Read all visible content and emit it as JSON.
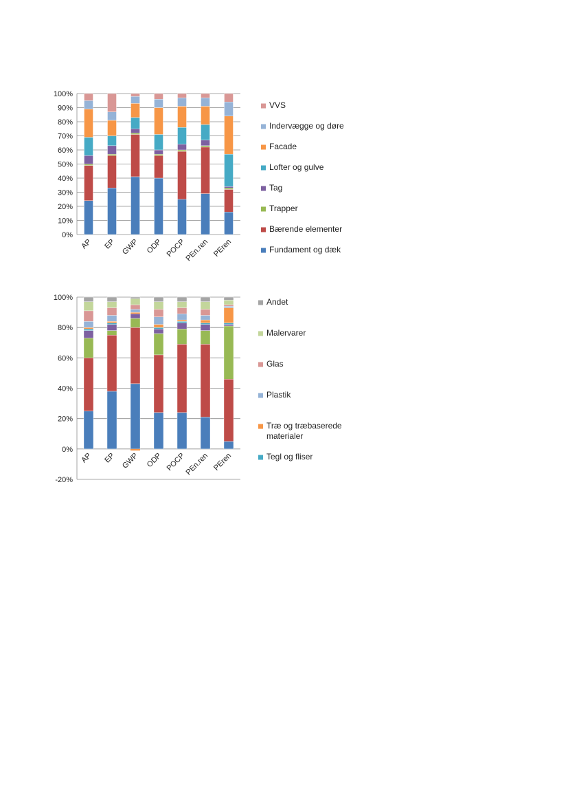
{
  "chart_data": [
    {
      "type": "bar",
      "stacked": true,
      "categories": [
        "AP",
        "EP",
        "GWP",
        "ODP",
        "POCP",
        "PEn.ren",
        "PEren"
      ],
      "ylim": [
        0,
        100
      ],
      "yticks": [
        0,
        10,
        20,
        30,
        40,
        50,
        60,
        70,
        80,
        90,
        100
      ],
      "ytick_labels": [
        "0%",
        "10%",
        "20%",
        "30%",
        "40%",
        "50%",
        "60%",
        "70%",
        "80%",
        "90%",
        "100%"
      ],
      "legend_position": "right",
      "legend_order": [
        "VVS",
        "Indervægge og døre",
        "Facade",
        "Lofter og gulve",
        "Tag",
        "Trapper",
        "Bærende elementer",
        "Fundament og dæk"
      ],
      "series": [
        {
          "name": "Fundament og dæk",
          "color": "#4a7ebb",
          "values": [
            24,
            33,
            41,
            40,
            25,
            29,
            16
          ]
        },
        {
          "name": "Bærende elementer",
          "color": "#be4b48",
          "values": [
            25,
            23,
            30,
            16,
            34,
            33,
            16
          ]
        },
        {
          "name": "Trapper",
          "color": "#98b954",
          "values": [
            1,
            1,
            1,
            1,
            1,
            1,
            1
          ]
        },
        {
          "name": "Tag",
          "color": "#7d60a0",
          "values": [
            6,
            6,
            3,
            3,
            4,
            4,
            1
          ]
        },
        {
          "name": "Lofter og gulve",
          "color": "#46aac5",
          "values": [
            13,
            7,
            8,
            11,
            12,
            11,
            23
          ]
        },
        {
          "name": "Facade",
          "color": "#f79646",
          "values": [
            20,
            11,
            10,
            19,
            15,
            13,
            27
          ]
        },
        {
          "name": "Indervægge og døre",
          "color": "#95b3d7",
          "values": [
            6,
            6,
            5,
            6,
            6,
            6,
            10
          ]
        },
        {
          "name": "VVS",
          "color": "#d99795",
          "values": [
            5,
            13,
            2,
            4,
            3,
            3,
            6
          ]
        }
      ]
    },
    {
      "type": "bar",
      "stacked": true,
      "categories": [
        "AP",
        "EP",
        "GWP",
        "ODP",
        "POCP",
        "PEn.ren",
        "PEren"
      ],
      "ylim": [
        -20,
        100
      ],
      "yticks": [
        -20,
        0,
        20,
        40,
        60,
        80,
        100
      ],
      "ytick_labels": [
        "-20%",
        "0%",
        "20%",
        "40%",
        "60%",
        "80%",
        "100%"
      ],
      "legend_position": "right",
      "legend_order": [
        "Andet",
        "Malervarer",
        "Glas",
        "Plastik",
        "Træ og træbaserede materialer",
        "Tegl og fliser"
      ],
      "negative_series": [
        {
          "name": "Træ og træbaserede materialer",
          "color": "#f79646",
          "values": [
            0,
            0,
            -1,
            0,
            0,
            0,
            0
          ]
        }
      ],
      "series": [
        {
          "name": "",
          "color": "#4a7ebb",
          "values": [
            25,
            38,
            43,
            24,
            24,
            21,
            5
          ]
        },
        {
          "name": "",
          "color": "#be4b48",
          "values": [
            35,
            37,
            37,
            38,
            45,
            48,
            41
          ]
        },
        {
          "name": "",
          "color": "#98b954",
          "values": [
            13,
            3,
            6,
            14,
            10,
            9,
            35
          ]
        },
        {
          "name": "",
          "color": "#7d60a0",
          "values": [
            5,
            4,
            3,
            3,
            4,
            4,
            1
          ]
        },
        {
          "name": "Tegl og fliser",
          "color": "#46aac5",
          "values": [
            1,
            1,
            0,
            1,
            1,
            1,
            1
          ]
        },
        {
          "name": "Træ og træbaserede materialer",
          "color": "#f79646",
          "values": [
            1,
            1,
            1,
            2,
            1,
            2,
            10
          ]
        },
        {
          "name": "Plastik",
          "color": "#95b3d7",
          "values": [
            4,
            4,
            2,
            5,
            4,
            3,
            1
          ]
        },
        {
          "name": "Glas",
          "color": "#d99795",
          "values": [
            7,
            5,
            3,
            5,
            4,
            4,
            1
          ]
        },
        {
          "name": "Malervarer",
          "color": "#c3d69b",
          "values": [
            6,
            4,
            4,
            5,
            4,
            5,
            3
          ]
        },
        {
          "name": "Andet",
          "color": "#a5a5a5",
          "values": [
            3,
            3,
            1,
            3,
            3,
            3,
            2
          ]
        }
      ]
    }
  ]
}
